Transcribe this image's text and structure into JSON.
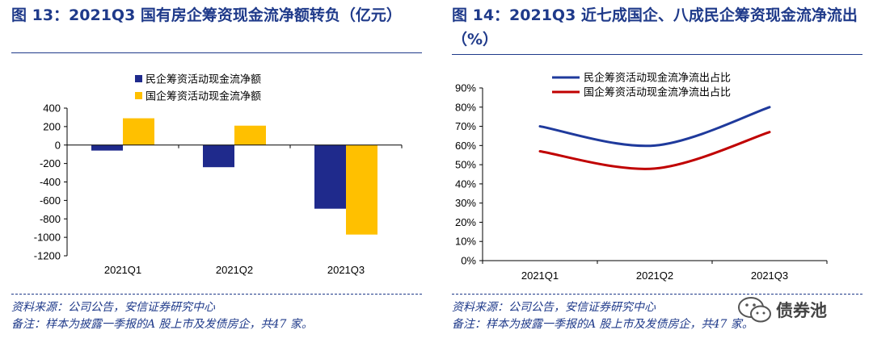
{
  "left_figure": {
    "title": "图 13：2021Q3 国有房企筹资现金流净额转负（亿元）",
    "source": "资料来源：公司公告，安信证券研究中心",
    "note": "备注：样本为披露一季报的A 股上市及发债房企，共47 家。"
  },
  "right_figure": {
    "title": "图 14：2021Q3 近七成国企、八成民企筹资现金流净流出（%）",
    "source": "资料来源：公司公告，安信证券研究中心",
    "note": "备注：样本为披露一季报的A 股上市及发债房企，共47 家。"
  },
  "watermark": {
    "text": "债券池",
    "logo_lettering": "WeChat"
  },
  "colors": {
    "navy": "#1f2a8c",
    "gold": "#ffc000",
    "blue_line": "#1f3a9c",
    "red_line": "#c00000",
    "title_blue": "#1f3a8a"
  },
  "chart_data": [
    {
      "type": "bar",
      "title": "2021Q3 国有房企筹资现金流净额转负（亿元）",
      "categories": [
        "2021Q1",
        "2021Q2",
        "2021Q3"
      ],
      "series": [
        {
          "name": "民企筹资活动现金流净额",
          "values": [
            -60,
            -240,
            -690
          ]
        },
        {
          "name": "国企筹资活动现金流净额",
          "values": [
            290,
            210,
            -970
          ]
        }
      ],
      "yticks": [
        "400",
        "200",
        "0",
        "-200",
        "-400",
        "-600",
        "-800",
        "-1000",
        "-1200"
      ],
      "ylim": [
        -1200,
        400
      ],
      "ystep": 200,
      "legend": "top-left",
      "grid": false
    },
    {
      "type": "line",
      "title": "2021Q3 近七成国企、八成民企筹资现金流净流出（%）",
      "categories": [
        "2021Q1",
        "2021Q2",
        "2021Q3"
      ],
      "series": [
        {
          "name": "民企筹资活动现金流净流出占比",
          "values": [
            70,
            60,
            80
          ]
        },
        {
          "name": "国企筹资活动现金流净流出占比",
          "values": [
            57,
            48,
            67
          ]
        }
      ],
      "yticks": [
        "90%",
        "80%",
        "70%",
        "60%",
        "50%",
        "40%",
        "30%",
        "20%",
        "10%",
        "0%"
      ],
      "ylim": [
        0,
        90
      ],
      "ystep": 10,
      "legend": "top-center",
      "grid": false,
      "smooth": true
    }
  ]
}
